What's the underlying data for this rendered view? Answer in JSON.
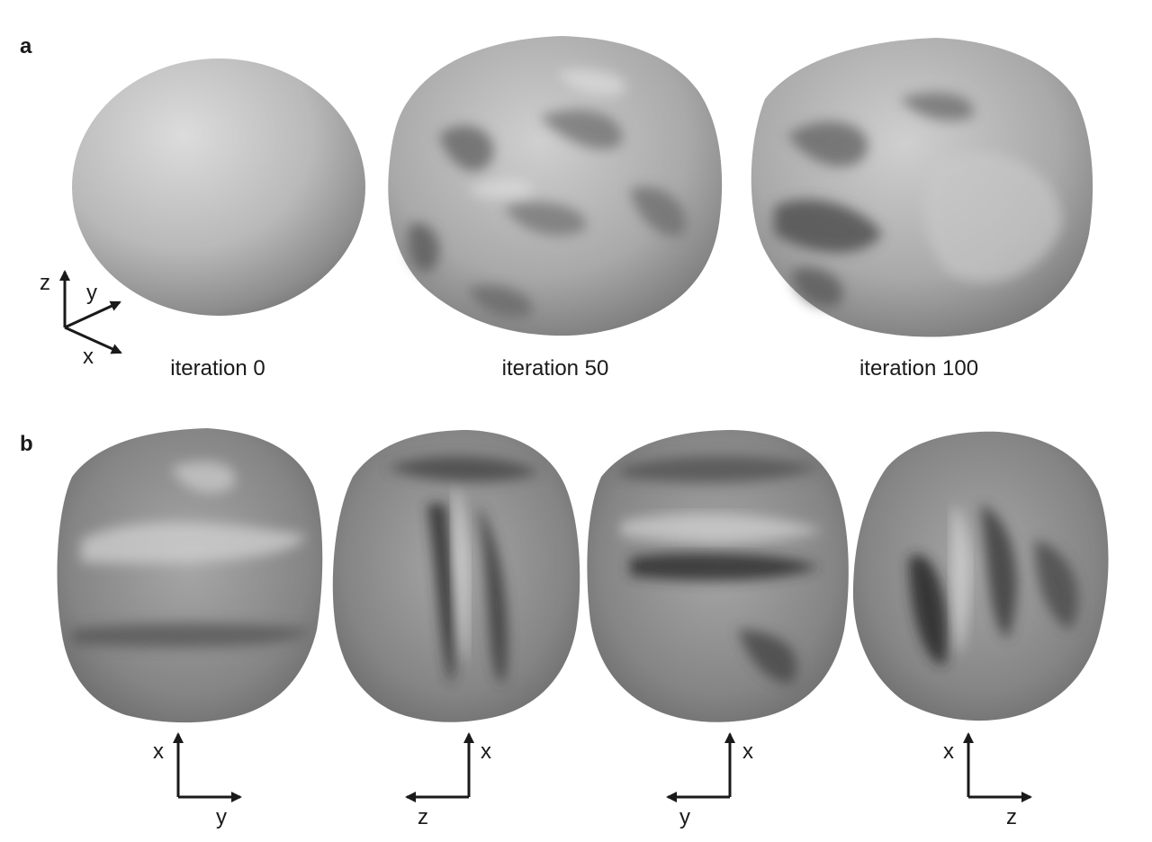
{
  "panels": {
    "a": {
      "label": "a",
      "captions": [
        "iteration 0",
        "iteration 50",
        "iteration 100"
      ],
      "axes": {
        "z": "z",
        "y": "y",
        "x": "x"
      }
    },
    "b": {
      "label": "b",
      "views": [
        {
          "vertical": "x",
          "horizontal": "y"
        },
        {
          "vertical": "x",
          "horizontal": "z"
        },
        {
          "vertical": "x",
          "horizontal": "y"
        },
        {
          "vertical": "x",
          "horizontal": "z"
        }
      ]
    }
  }
}
